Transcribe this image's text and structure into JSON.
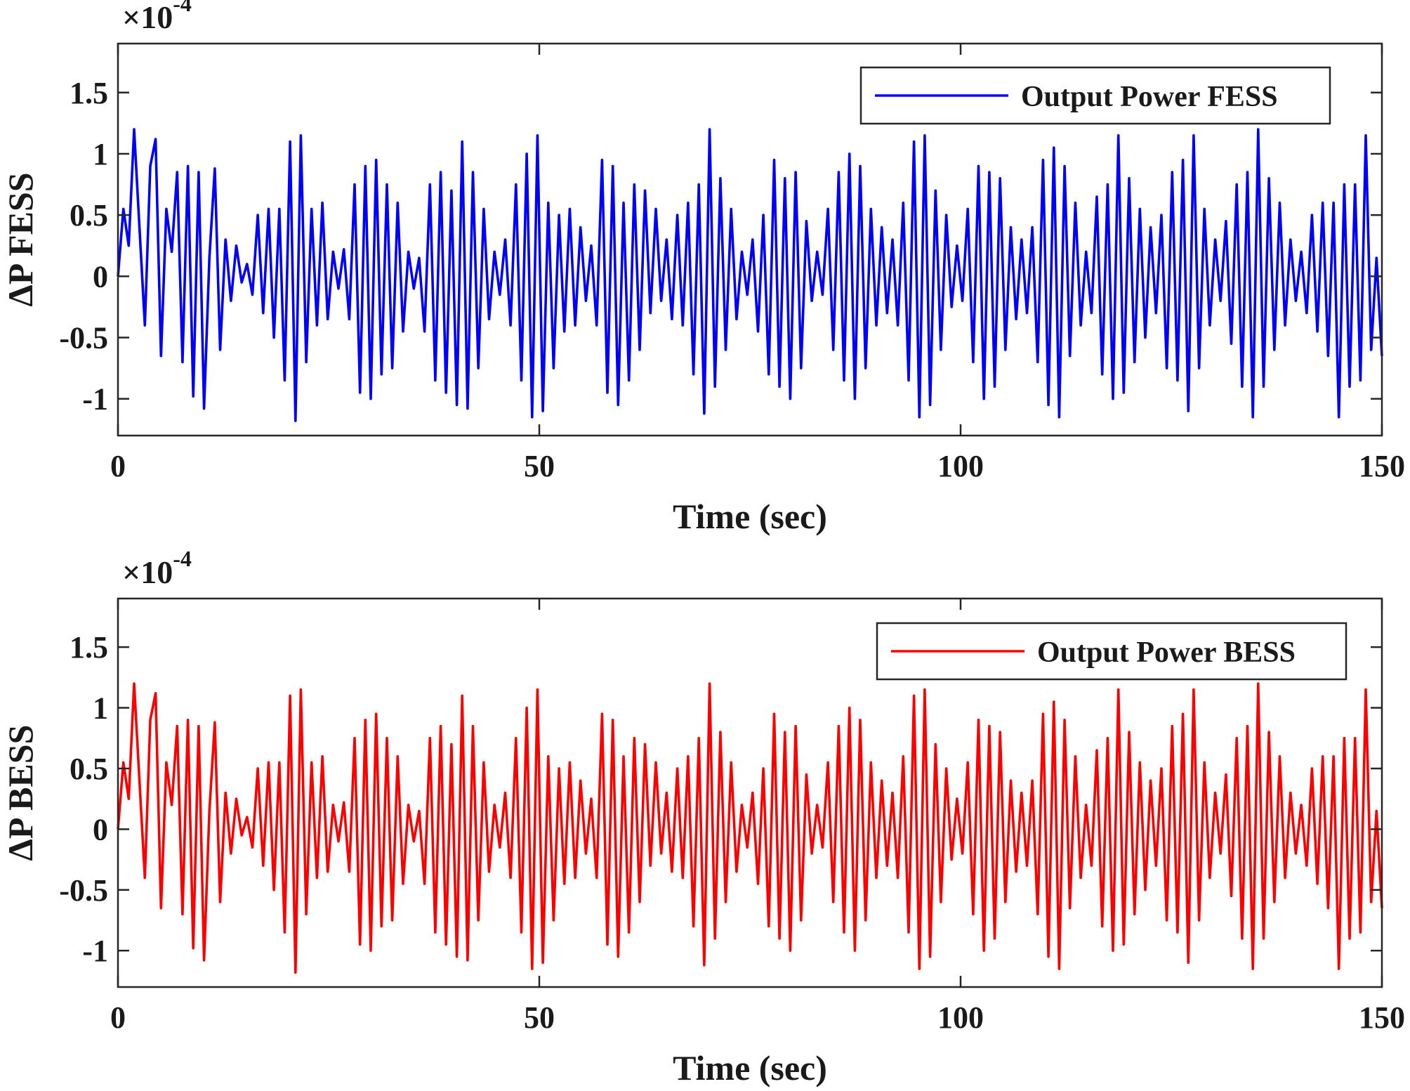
{
  "chart_data": [
    {
      "type": "line",
      "title": "",
      "xlabel": "Time (sec)",
      "ylabel": "ΔP FESS",
      "xlim": [
        0,
        150
      ],
      "ylim": [
        -1.3,
        1.9
      ],
      "x_ticks": [
        0,
        50,
        100,
        150
      ],
      "x_tick_labels": [
        "0",
        "50",
        "100",
        "150"
      ],
      "y_ticks": [
        -1,
        -0.5,
        0,
        0.5,
        1,
        1.5
      ],
      "y_tick_labels": [
        "-1",
        "-0.5",
        "0",
        "0.5",
        "1",
        "1.5"
      ],
      "y_exponent_base": "×10",
      "y_exponent_power": "-4",
      "grid": false,
      "legend_position": "top-right",
      "series": [
        {
          "name": "Output Power FESS",
          "color": "#0000ff",
          "sampling": "uniform 0 to 150 s",
          "values": [
            0,
            0.55,
            0.25,
            1.2,
            0.4,
            -0.4,
            0.9,
            1.12,
            -0.65,
            0.55,
            0.2,
            0.85,
            -0.7,
            0.9,
            -0.98,
            0.85,
            -1.08,
            0.15,
            0.88,
            -0.6,
            0.3,
            -0.2,
            0.25,
            -0.05,
            0.1,
            -0.15,
            0.5,
            -0.3,
            0.55,
            -0.5,
            0.55,
            -0.85,
            1.1,
            -1.18,
            1.15,
            -0.7,
            0.55,
            -0.4,
            0.6,
            -0.35,
            0.2,
            -0.1,
            0.22,
            -0.35,
            0.75,
            -0.95,
            0.9,
            -1.0,
            0.95,
            -0.8,
            0.75,
            -0.75,
            0.6,
            -0.45,
            0.2,
            -0.1,
            0.15,
            -0.45,
            0.75,
            -0.85,
            0.85,
            -0.95,
            0.7,
            -1.05,
            1.1,
            -1.08,
            0.85,
            -0.75,
            0.55,
            -0.35,
            0.2,
            -0.15,
            0.3,
            -0.4,
            0.75,
            -0.85,
            1.0,
            -1.15,
            1.15,
            -1.1,
            0.6,
            -0.75,
            0.5,
            -0.45,
            0.55,
            -0.4,
            0.4,
            -0.2,
            0.25,
            -0.4,
            0.95,
            -0.95,
            0.9,
            -1.05,
            0.6,
            -0.85,
            0.75,
            -0.6,
            0.7,
            -0.3,
            0.55,
            -0.2,
            0.3,
            -0.35,
            0.5,
            -0.4,
            0.6,
            -0.8,
            0.75,
            -1.12,
            1.2,
            -0.9,
            0.8,
            -0.6,
            0.55,
            -0.35,
            0.2,
            -0.15,
            0.3,
            -0.45,
            0.5,
            -0.8,
            0.95,
            -0.9,
            0.8,
            -1.0,
            0.85,
            -0.75,
            0.45,
            -0.2,
            0.2,
            -0.15,
            0.55,
            -0.6,
            0.85,
            -0.85,
            1.0,
            -1.0,
            0.9,
            -0.75,
            0.55,
            -0.4,
            0.4,
            -0.3,
            0.3,
            -0.4,
            0.6,
            -0.85,
            1.1,
            -1.15,
            1.15,
            -1.05,
            0.7,
            -0.6,
            0.5,
            -0.25,
            0.25,
            -0.2,
            0.55,
            -0.7,
            0.9,
            -1.0,
            0.85,
            -0.9,
            0.8,
            -0.6,
            0.4,
            -0.35,
            0.3,
            -0.3,
            0.4,
            -0.7,
            0.95,
            -1.05,
            1.05,
            -1.15,
            0.9,
            -0.65,
            0.6,
            -0.4,
            0.2,
            -0.3,
            0.65,
            -0.8,
            0.75,
            -1.0,
            1.15,
            -0.95,
            0.8,
            -0.7,
            0.55,
            -0.5,
            0.4,
            -0.3,
            0.5,
            -0.75,
            0.85,
            -0.85,
            0.95,
            -1.1,
            1.15,
            -0.75,
            0.55,
            -0.4,
            0.3,
            -0.2,
            0.45,
            -0.55,
            0.75,
            -0.9,
            0.85,
            -1.15,
            1.2,
            -0.9,
            0.8,
            -0.6,
            0.6,
            -0.4,
            0.3,
            -0.2,
            0.2,
            -0.3,
            0.5,
            -0.45,
            0.6,
            -0.65,
            0.6,
            -1.15,
            0.75,
            -0.9,
            0.75,
            -0.85,
            1.15,
            -0.6,
            0.15,
            -0.65
          ]
        }
      ]
    },
    {
      "type": "line",
      "title": "",
      "xlabel": "Time (sec)",
      "ylabel": "ΔP BESS",
      "xlim": [
        0,
        150
      ],
      "ylim": [
        -1.3,
        1.9
      ],
      "x_ticks": [
        0,
        50,
        100,
        150
      ],
      "x_tick_labels": [
        "0",
        "50",
        "100",
        "150"
      ],
      "y_ticks": [
        -1,
        -0.5,
        0,
        0.5,
        1,
        1.5
      ],
      "y_tick_labels": [
        "-1",
        "-0.5",
        "0",
        "0.5",
        "1",
        "1.5"
      ],
      "y_exponent_base": "×10",
      "y_exponent_power": "-4",
      "grid": false,
      "legend_position": "top-right",
      "series": [
        {
          "name": "Output Power BESS",
          "color": "#ff0000",
          "sampling": "uniform 0 to 150 s",
          "values": [
            0,
            0.55,
            0.25,
            1.2,
            0.4,
            -0.4,
            0.9,
            1.12,
            -0.65,
            0.55,
            0.2,
            0.85,
            -0.7,
            0.9,
            -0.98,
            0.85,
            -1.08,
            0.15,
            0.88,
            -0.6,
            0.3,
            -0.2,
            0.25,
            -0.05,
            0.1,
            -0.15,
            0.5,
            -0.3,
            0.55,
            -0.5,
            0.55,
            -0.85,
            1.1,
            -1.18,
            1.15,
            -0.7,
            0.55,
            -0.4,
            0.6,
            -0.35,
            0.2,
            -0.1,
            0.22,
            -0.35,
            0.75,
            -0.95,
            0.9,
            -1.0,
            0.95,
            -0.8,
            0.75,
            -0.75,
            0.6,
            -0.45,
            0.2,
            -0.1,
            0.15,
            -0.45,
            0.75,
            -0.85,
            0.85,
            -0.95,
            0.7,
            -1.05,
            1.1,
            -1.08,
            0.85,
            -0.75,
            0.55,
            -0.35,
            0.2,
            -0.15,
            0.3,
            -0.4,
            0.75,
            -0.85,
            1.0,
            -1.15,
            1.15,
            -1.1,
            0.6,
            -0.75,
            0.5,
            -0.45,
            0.55,
            -0.4,
            0.4,
            -0.2,
            0.25,
            -0.4,
            0.95,
            -0.95,
            0.9,
            -1.05,
            0.6,
            -0.85,
            0.75,
            -0.6,
            0.7,
            -0.3,
            0.55,
            -0.2,
            0.3,
            -0.35,
            0.5,
            -0.4,
            0.6,
            -0.8,
            0.75,
            -1.12,
            1.2,
            -0.9,
            0.8,
            -0.6,
            0.55,
            -0.35,
            0.2,
            -0.15,
            0.3,
            -0.45,
            0.5,
            -0.8,
            0.95,
            -0.9,
            0.8,
            -1.0,
            0.85,
            -0.75,
            0.45,
            -0.2,
            0.2,
            -0.15,
            0.55,
            -0.6,
            0.85,
            -0.85,
            1.0,
            -1.0,
            0.9,
            -0.75,
            0.55,
            -0.4,
            0.4,
            -0.3,
            0.3,
            -0.4,
            0.6,
            -0.85,
            1.1,
            -1.15,
            1.15,
            -1.05,
            0.7,
            -0.6,
            0.5,
            -0.25,
            0.25,
            -0.2,
            0.55,
            -0.7,
            0.9,
            -1.0,
            0.85,
            -0.9,
            0.8,
            -0.6,
            0.4,
            -0.35,
            0.3,
            -0.3,
            0.4,
            -0.7,
            0.95,
            -1.05,
            1.05,
            -1.15,
            0.9,
            -0.65,
            0.6,
            -0.4,
            0.2,
            -0.3,
            0.65,
            -0.8,
            0.75,
            -1.0,
            1.15,
            -0.95,
            0.8,
            -0.7,
            0.55,
            -0.5,
            0.4,
            -0.3,
            0.5,
            -0.75,
            0.85,
            -0.85,
            0.95,
            -1.1,
            1.15,
            -0.75,
            0.55,
            -0.4,
            0.3,
            -0.2,
            0.45,
            -0.55,
            0.75,
            -0.9,
            0.85,
            -1.15,
            1.2,
            -0.9,
            0.8,
            -0.6,
            0.6,
            -0.4,
            0.3,
            -0.2,
            0.2,
            -0.3,
            0.5,
            -0.45,
            0.6,
            -0.65,
            0.6,
            -1.15,
            0.75,
            -0.9,
            0.75,
            -0.85,
            1.15,
            -0.6,
            0.15,
            -0.65
          ]
        }
      ]
    }
  ]
}
